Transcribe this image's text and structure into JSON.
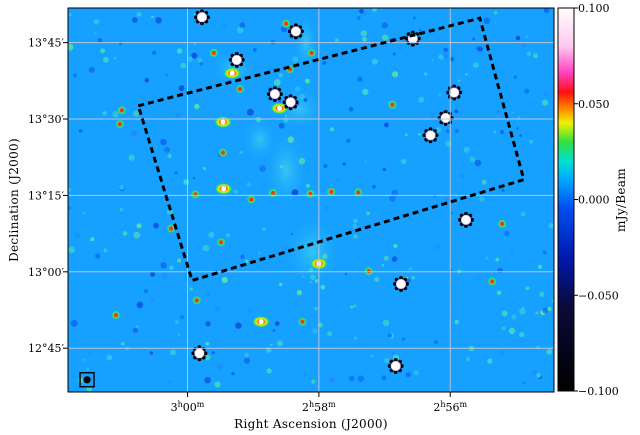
{
  "chart_data": {
    "type": "heatmap",
    "title": "",
    "xlabel": "Right Ascension (J2000)",
    "ylabel": "Declination (J2000)",
    "x_ticks": [
      {
        "ra_min": 180,
        "text_main": "3",
        "text_h": "h",
        "text_m": "00",
        "text_unit": "m"
      },
      {
        "ra_min": 178,
        "text_main": "2",
        "text_h": "h",
        "text_m": "58",
        "text_unit": "m"
      },
      {
        "ra_min": 176,
        "text_main": "2",
        "text_h": "h",
        "text_m": "56",
        "text_unit": "m"
      }
    ],
    "y_ticks": [
      {
        "dec_arcmin": 825,
        "text": "13°45′"
      },
      {
        "dec_arcmin": 810,
        "text": "13°30′"
      },
      {
        "dec_arcmin": 795,
        "text": "13°15′"
      },
      {
        "dec_arcmin": 780,
        "text": "13°00′"
      },
      {
        "dec_arcmin": 765,
        "text": "12°45′"
      }
    ],
    "xlim_ra_min": [
      181.82,
      174.42
    ],
    "ylim_dec_arcmin": [
      756.4,
      831.8
    ],
    "grid": true,
    "colorbar": {
      "label": "mJy/Beam",
      "range": [
        -0.1,
        0.1
      ],
      "ticks": [
        {
          "value": 0.1,
          "text": "0.100"
        },
        {
          "value": 0.05,
          "text": "0.050"
        },
        {
          "value": 0.0,
          "text": "0.000"
        },
        {
          "value": -0.05,
          "text": "−0.050"
        },
        {
          "value": -0.1,
          "text": "−0.100"
        }
      ]
    },
    "background_value": -0.012,
    "region_outline": {
      "style": "dashed",
      "color": "#000000",
      "corners_ra_dec": [
        [
          180.75,
          812.6
        ],
        [
          175.55,
          829.8
        ],
        [
          174.88,
          798.1
        ],
        [
          179.93,
          778.3
        ]
      ]
    },
    "bright_sources": [
      {
        "ra": 179.78,
        "dec": 830.0,
        "type": "artifact"
      },
      {
        "ra": 178.35,
        "dec": 827.2,
        "type": "artifact"
      },
      {
        "ra": 178.5,
        "dec": 828.7,
        "type": "point"
      },
      {
        "ra": 176.57,
        "dec": 825.8,
        "type": "artifact"
      },
      {
        "ra": 179.6,
        "dec": 823.0,
        "type": "point"
      },
      {
        "ra": 179.25,
        "dec": 821.6,
        "type": "artifact"
      },
      {
        "ra": 179.32,
        "dec": 819.0,
        "type": "extended"
      },
      {
        "ra": 178.67,
        "dec": 814.9,
        "type": "artifact"
      },
      {
        "ra": 178.6,
        "dec": 812.1,
        "type": "extended"
      },
      {
        "ra": 178.43,
        "dec": 813.3,
        "type": "artifact"
      },
      {
        "ra": 178.44,
        "dec": 819.8,
        "type": "point"
      },
      {
        "ra": 175.94,
        "dec": 815.2,
        "type": "artifact"
      },
      {
        "ra": 176.88,
        "dec": 812.8,
        "type": "point"
      },
      {
        "ra": 176.07,
        "dec": 810.2,
        "type": "artifact"
      },
      {
        "ra": 179.46,
        "dec": 809.4,
        "type": "extended"
      },
      {
        "ra": 176.3,
        "dec": 806.8,
        "type": "artifact"
      },
      {
        "ra": 181.0,
        "dec": 811.7,
        "type": "point"
      },
      {
        "ra": 181.03,
        "dec": 809.0,
        "type": "point"
      },
      {
        "ra": 179.46,
        "dec": 803.4,
        "type": "point"
      },
      {
        "ra": 179.45,
        "dec": 796.3,
        "type": "extended"
      },
      {
        "ra": 179.03,
        "dec": 794.2,
        "type": "point"
      },
      {
        "ra": 178.7,
        "dec": 795.5,
        "type": "point"
      },
      {
        "ra": 179.88,
        "dec": 795.2,
        "type": "point"
      },
      {
        "ra": 178.13,
        "dec": 795.3,
        "type": "point"
      },
      {
        "ra": 177.81,
        "dec": 795.7,
        "type": "point"
      },
      {
        "ra": 177.4,
        "dec": 795.6,
        "type": "point"
      },
      {
        "ra": 175.76,
        "dec": 790.2,
        "type": "artifact"
      },
      {
        "ra": 175.21,
        "dec": 789.4,
        "type": "point"
      },
      {
        "ra": 180.25,
        "dec": 788.5,
        "type": "point"
      },
      {
        "ra": 179.49,
        "dec": 785.8,
        "type": "point"
      },
      {
        "ra": 178.0,
        "dec": 781.6,
        "type": "extended"
      },
      {
        "ra": 177.24,
        "dec": 780.1,
        "type": "point"
      },
      {
        "ra": 176.75,
        "dec": 777.6,
        "type": "artifact"
      },
      {
        "ra": 175.36,
        "dec": 778.1,
        "type": "point"
      },
      {
        "ra": 181.09,
        "dec": 771.5,
        "type": "point"
      },
      {
        "ra": 179.86,
        "dec": 774.4,
        "type": "point"
      },
      {
        "ra": 178.88,
        "dec": 770.2,
        "type": "extended"
      },
      {
        "ra": 178.25,
        "dec": 770.2,
        "type": "point"
      },
      {
        "ra": 179.82,
        "dec": 764.0,
        "type": "artifact"
      },
      {
        "ra": 176.83,
        "dec": 761.5,
        "type": "artifact"
      },
      {
        "ra": 179.2,
        "dec": 815.9,
        "type": "point"
      },
      {
        "ra": 178.11,
        "dec": 823.0,
        "type": "point"
      }
    ],
    "beam_marker": {
      "ra": 181.53,
      "dec": 758.8
    }
  }
}
